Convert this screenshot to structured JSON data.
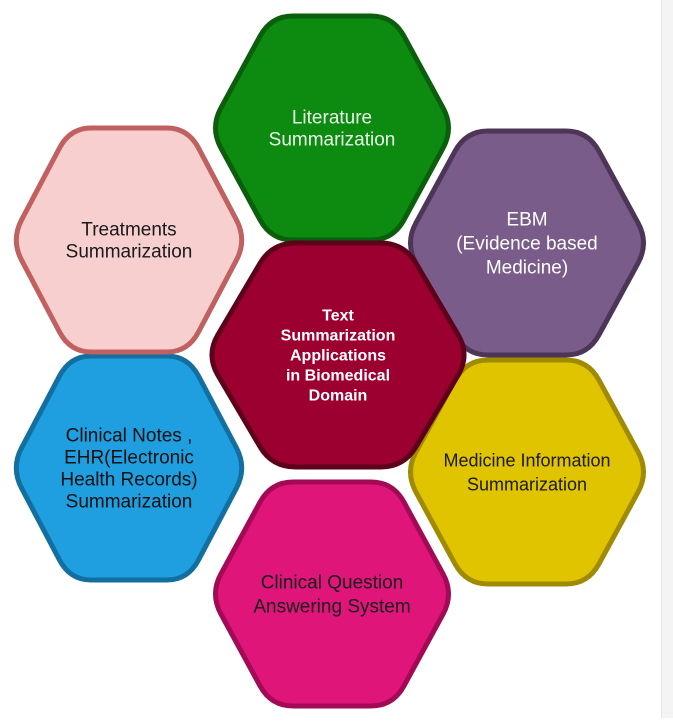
{
  "diagram": {
    "center": {
      "lines": [
        "Text",
        "Summarization",
        "Applications",
        "in Biomedical",
        "Domain"
      ],
      "fill": "#9c0030",
      "stroke": "#5e001c",
      "text_color": "#ffffff"
    },
    "nodes": [
      {
        "id": "literature",
        "lines": [
          "Literature",
          "Summarization"
        ],
        "fill": "#0d8a10",
        "stroke": "#0a5e0c",
        "text_color": "#e8f5e8"
      },
      {
        "id": "ebm",
        "lines": [
          "EBM",
          "(Evidence based",
          "Medicine)"
        ],
        "fill": "#7a5c8a",
        "stroke": "#4d3558",
        "text_color": "#ffffff"
      },
      {
        "id": "medicine-info",
        "lines": [
          "Medicine Information",
          "Summarization"
        ],
        "fill": "#e0c400",
        "stroke": "#a08a00",
        "text_color": "#1a1a1a"
      },
      {
        "id": "clinical-qa",
        "lines": [
          "Clinical Question",
          "Answering System"
        ],
        "fill": "#e0157a",
        "stroke": "#a30a55",
        "text_color": "#1a1a1a"
      },
      {
        "id": "clinical-notes",
        "lines": [
          "Clinical Notes ,",
          "EHR(Electronic",
          "Health Records)",
          "Summarization"
        ],
        "fill": "#1f9fe0",
        "stroke": "#136fa0",
        "text_color": "#111111"
      },
      {
        "id": "treatments",
        "lines": [
          "Treatments",
          "Summarization"
        ],
        "fill": "#f7cfcf",
        "stroke": "#c06060",
        "text_color": "#1a1a1a"
      }
    ]
  }
}
